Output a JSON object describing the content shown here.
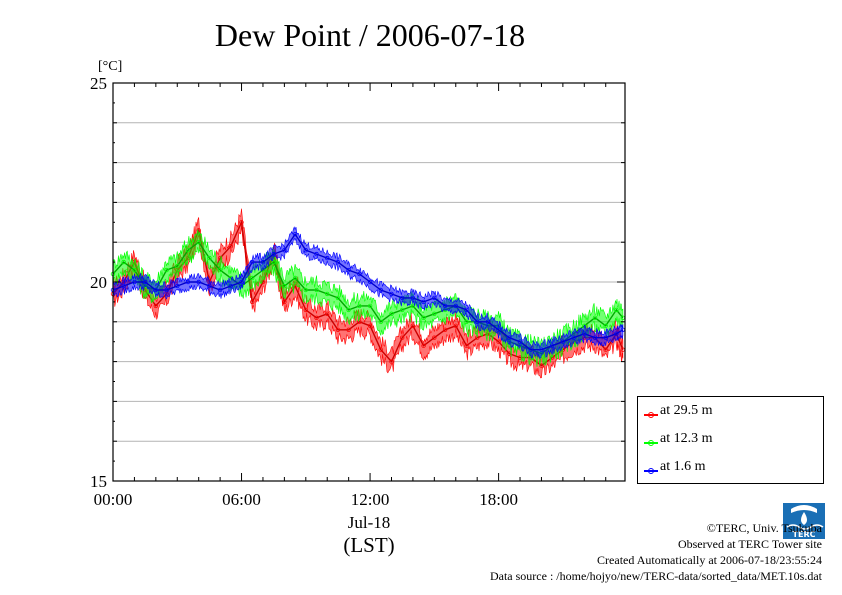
{
  "chart_data": {
    "type": "line",
    "title": "Dew Point / 2006-07-18",
    "ylabel": "[°C]",
    "xlabel": "Jul-18",
    "xlabel2": "(LST)",
    "ylim": [
      15,
      25
    ],
    "xlim_hours": [
      0,
      23.9
    ],
    "y_ticks": [
      15,
      20,
      25
    ],
    "y_tick_labels": [
      "15",
      "20",
      "25"
    ],
    "x_ticks_hours": [
      0,
      6,
      12,
      18
    ],
    "x_tick_labels": [
      "00:00",
      "06:00",
      "12:00",
      "18:00"
    ],
    "grid": true,
    "legend_position": "bottom-right outside",
    "series": [
      {
        "name": "at 29.5 m",
        "color": "#ff0000",
        "x": [
          0,
          0.5,
          1,
          1.5,
          2,
          2.5,
          3,
          3.5,
          4,
          4.5,
          5,
          5.5,
          6,
          6.5,
          7,
          7.5,
          8,
          8.5,
          9,
          9.5,
          10,
          10.5,
          11,
          11.5,
          12,
          12.5,
          13,
          13.5,
          14,
          14.5,
          15,
          15.5,
          16,
          16.5,
          17,
          17.5,
          18,
          18.5,
          19,
          19.5,
          20,
          20.5,
          21,
          21.5,
          22,
          22.5,
          23,
          23.5,
          23.8
        ],
        "y": [
          19.7,
          20.0,
          20.5,
          19.8,
          19.4,
          19.7,
          20.3,
          20.6,
          21.3,
          20.0,
          20.6,
          20.9,
          21.5,
          19.5,
          20.0,
          20.7,
          19.5,
          19.9,
          19.3,
          19.1,
          19.2,
          18.8,
          18.8,
          19.0,
          18.9,
          18.3,
          18.0,
          18.6,
          18.9,
          18.4,
          18.6,
          18.8,
          18.9,
          18.4,
          18.6,
          18.7,
          18.5,
          18.2,
          18.1,
          18.1,
          17.9,
          18.1,
          18.3,
          18.5,
          18.6,
          18.6,
          18.3,
          18.7,
          18.3
        ]
      },
      {
        "name": "at 12.3 m",
        "color": "#00ff00",
        "x": [
          0,
          0.5,
          1,
          1.5,
          2,
          2.5,
          3,
          3.5,
          4,
          4.5,
          5,
          5.5,
          6,
          6.5,
          7,
          7.5,
          8,
          8.5,
          9,
          9.5,
          10,
          10.5,
          11,
          11.5,
          12,
          12.5,
          13,
          13.5,
          14,
          14.5,
          15,
          15.5,
          16,
          16.5,
          17,
          17.5,
          18,
          18.5,
          19,
          19.5,
          20,
          20.5,
          21,
          21.5,
          22,
          22.5,
          23,
          23.5,
          23.8
        ],
        "y": [
          20.2,
          20.5,
          20.3,
          19.9,
          19.8,
          20.3,
          20.4,
          20.8,
          21.0,
          20.6,
          20.3,
          20.1,
          19.9,
          20.1,
          20.3,
          20.5,
          19.9,
          20.1,
          19.8,
          19.8,
          19.7,
          19.6,
          19.3,
          19.4,
          19.4,
          19.0,
          19.2,
          19.3,
          19.4,
          19.1,
          19.2,
          19.3,
          19.4,
          19.0,
          19.0,
          18.9,
          18.9,
          18.5,
          18.4,
          18.3,
          18.2,
          18.4,
          18.5,
          18.7,
          18.9,
          19.1,
          18.9,
          19.3,
          19.1
        ]
      },
      {
        "name": "at 1.6 m",
        "color": "#0000ff",
        "x": [
          0,
          0.5,
          1,
          1.5,
          2,
          2.5,
          3,
          3.5,
          4,
          4.5,
          5,
          5.5,
          6,
          6.5,
          7,
          7.5,
          8,
          8.5,
          9,
          9.5,
          10,
          10.5,
          11,
          11.5,
          12,
          12.5,
          13,
          13.5,
          14,
          14.5,
          15,
          15.5,
          16,
          16.5,
          17,
          17.5,
          18,
          18.5,
          19,
          19.5,
          20,
          20.5,
          21,
          21.5,
          22,
          22.5,
          23,
          23.5,
          23.8
        ],
        "y": [
          19.8,
          19.9,
          20.0,
          20.0,
          19.8,
          19.8,
          19.9,
          20.0,
          20.0,
          19.9,
          19.8,
          19.9,
          20.0,
          20.5,
          20.5,
          20.7,
          20.8,
          21.2,
          20.8,
          20.7,
          20.6,
          20.5,
          20.3,
          20.2,
          20.0,
          19.8,
          19.7,
          19.6,
          19.6,
          19.5,
          19.6,
          19.4,
          19.4,
          19.3,
          19.0,
          19.0,
          18.8,
          18.6,
          18.5,
          18.3,
          18.3,
          18.4,
          18.5,
          18.6,
          18.7,
          18.6,
          18.6,
          18.7,
          18.8
        ]
      }
    ]
  },
  "credits": {
    "copyright": "©TERC, Univ. Tsukuba",
    "observed": "Observed at TERC Tower site",
    "created": "Created Automatically at 2006-07-18/23:55:24",
    "source": "Data source : /home/hojyo/new/TERC-data/sorted_data/MET.10s.dat"
  },
  "logo": {
    "icon": "terc-logo",
    "text": "TERC"
  }
}
